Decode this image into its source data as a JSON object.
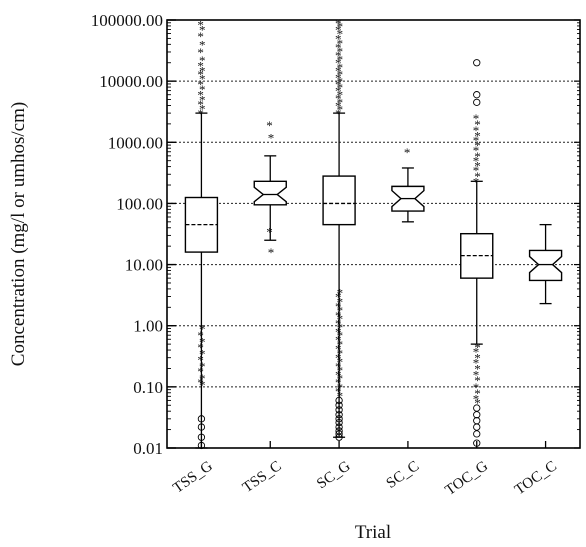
{
  "chart_data": {
    "type": "boxplot",
    "title": "",
    "xlabel": "Trial",
    "ylabel": "Concentration (mg/l or umhos/cm)",
    "yscale": "log",
    "ylim": [
      0.01,
      100000
    ],
    "yticks": [
      {
        "value": 0.01,
        "label": "0.01"
      },
      {
        "value": 0.1,
        "label": "0.10"
      },
      {
        "value": 1,
        "label": "1.00"
      },
      {
        "value": 10,
        "label": "10.00"
      },
      {
        "value": 100,
        "label": "100.00"
      },
      {
        "value": 1000,
        "label": "1000.00"
      },
      {
        "value": 10000,
        "label": "10000.00"
      },
      {
        "value": 100000,
        "label": "100000.00"
      }
    ],
    "grid": "horizontal dashed",
    "categories": [
      "TSS_G",
      "TSS_C",
      "SC_G",
      "SC_C",
      "TOC_G",
      "TOC_C"
    ],
    "boxes": [
      {
        "name": "TSS_G",
        "whisker_low": 0.01,
        "q1": 16,
        "median": 45,
        "q3": 125,
        "whisker_high": 3000,
        "notched": false,
        "outliers_star": [
          3000,
          3600,
          4200,
          5000,
          6000,
          7500,
          9000,
          11000,
          13000,
          15000,
          18000,
          22000,
          30000,
          40000,
          55000,
          70000,
          85000,
          0.9,
          0.7,
          0.55,
          0.45,
          0.35,
          0.28,
          0.22,
          0.18,
          0.14,
          0.12,
          0.11
        ],
        "outliers_circle": [
          0.03,
          0.022,
          0.015,
          0.011
        ]
      },
      {
        "name": "TSS_C",
        "whisker_low": 25,
        "q1": 95,
        "median": 140,
        "q3": 230,
        "whisker_high": 600,
        "notched": true,
        "outliers_star": [
          1900,
          1200,
          35,
          16
        ],
        "outliers_circle": []
      },
      {
        "name": "SC_G",
        "whisker_low": 0.015,
        "q1": 45,
        "median": 100,
        "q3": 280,
        "whisker_high": 3000,
        "notched": false,
        "outliers_star": [
          3000,
          3500,
          4000,
          4600,
          5300,
          6000,
          7000,
          8000,
          9000,
          10000,
          11500,
          13000,
          15000,
          17000,
          20000,
          23000,
          27000,
          31000,
          36000,
          42000,
          50000,
          60000,
          70000,
          80000,
          90000,
          3.5,
          3.0,
          2.5,
          2.1,
          1.8,
          1.5,
          1.3,
          1.1,
          0.95,
          0.8,
          0.7,
          0.6,
          0.5,
          0.42,
          0.36,
          0.3,
          0.26,
          0.22,
          0.19,
          0.16,
          0.14,
          0.12,
          0.1,
          0.085,
          0.072
        ],
        "outliers_circle": [
          0.06,
          0.05,
          0.042,
          0.035,
          0.03,
          0.026,
          0.022,
          0.019,
          0.017,
          0.015
        ]
      },
      {
        "name": "SC_C",
        "whisker_low": 50,
        "q1": 75,
        "median": 120,
        "q3": 190,
        "whisker_high": 380,
        "notched": true,
        "outliers_star": [
          700
        ],
        "outliers_circle": []
      },
      {
        "name": "TOC_G",
        "whisker_low": 0.5,
        "q1": 6,
        "median": 14,
        "q3": 32,
        "whisker_high": 230,
        "notched": false,
        "outliers_star": [
          230,
          280,
          350,
          420,
          500,
          600,
          750,
          900,
          1100,
          1300,
          1600,
          2000,
          2500,
          0.45,
          0.38,
          0.3,
          0.25,
          0.2,
          0.16,
          0.13,
          0.1,
          0.08,
          0.065,
          0.055
        ],
        "outliers_circle": [
          20000,
          6000,
          4500,
          0.045,
          0.035,
          0.028,
          0.022,
          0.017,
          0.012
        ]
      },
      {
        "name": "TOC_C",
        "whisker_low": 2.3,
        "q1": 5.5,
        "median": 10,
        "q3": 17,
        "whisker_high": 45,
        "notched": true,
        "outliers_star": [],
        "outliers_circle": []
      }
    ]
  }
}
